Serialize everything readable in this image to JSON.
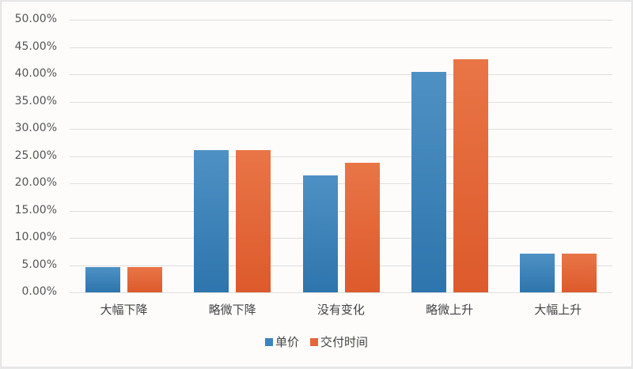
{
  "chart_data": {
    "type": "bar",
    "title": "",
    "xlabel": "",
    "ylabel": "",
    "categories": [
      "大幅下降",
      "略微下降",
      "没有变化",
      "略微上升",
      "大幅上升"
    ],
    "series": [
      {
        "name": "单价",
        "color": "#3d84bc",
        "values": [
          4.7,
          26.1,
          21.4,
          40.4,
          7.1
        ]
      },
      {
        "name": "交付时间",
        "color": "#e4653a",
        "values": [
          4.7,
          26.1,
          23.8,
          42.8,
          7.1
        ]
      }
    ],
    "ylim": [
      0,
      50
    ],
    "yticks": [
      "0.00%",
      "5.00%",
      "10.00%",
      "15.00%",
      "20.00%",
      "25.00%",
      "30.00%",
      "35.00%",
      "40.00%",
      "45.00%",
      "50.00%"
    ],
    "grid": true,
    "legend_position": "bottom"
  },
  "legend": {
    "items": [
      {
        "label": "单价",
        "color": "#3d84bc"
      },
      {
        "label": "交付时间",
        "color": "#e4653a"
      }
    ]
  }
}
